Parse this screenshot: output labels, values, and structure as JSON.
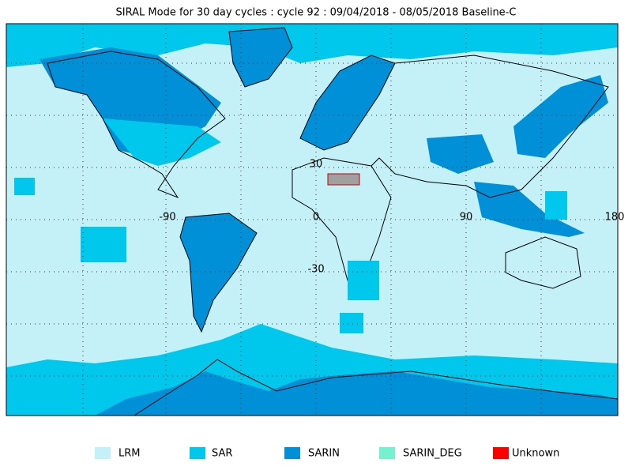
{
  "header": {
    "title": "SIRAL Mode for 30 day cycles : cycle 92 : 09/04/2018 - 08/05/2018 Baseline-C"
  },
  "map": {
    "lon_labels": [
      "-90",
      "0",
      "90",
      "180"
    ],
    "lat_labels": [
      "30",
      "-30"
    ]
  },
  "legend": [
    {
      "label": "LRM",
      "color": "#c4f0f7"
    },
    {
      "label": "SAR",
      "color": "#00c8ec"
    },
    {
      "label": "SARIN",
      "color": "#0090d8"
    },
    {
      "label": "SARIN_DEG",
      "color": "#74f2d0"
    },
    {
      "label": "Unknown",
      "color": "#ff0000"
    }
  ]
}
